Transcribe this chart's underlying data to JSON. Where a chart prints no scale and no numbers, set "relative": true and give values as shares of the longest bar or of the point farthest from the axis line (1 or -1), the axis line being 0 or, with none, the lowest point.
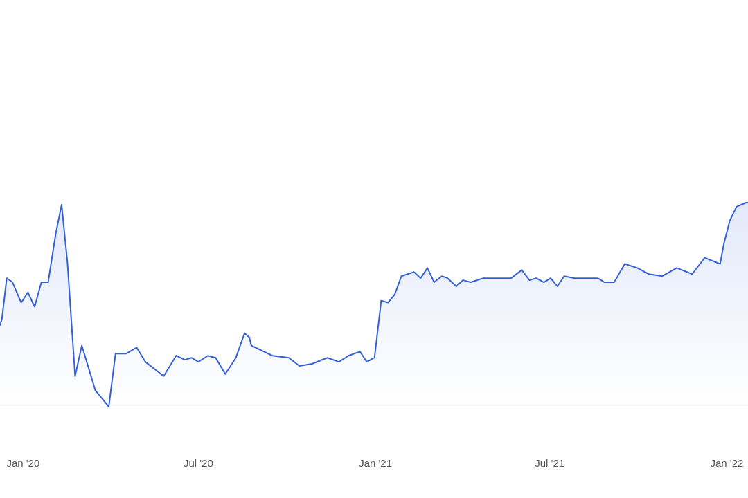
{
  "chart_data": {
    "type": "area",
    "relative": true,
    "color": "#3461d8",
    "grid": false,
    "marker": "none",
    "line_style": "solid",
    "xlim": [
      "2019-12-08",
      "2022-01-23"
    ],
    "xticks": [
      {
        "value": "2020-01-01",
        "label": "Jan '20"
      },
      {
        "value": "2020-07-01",
        "label": "Jul '20"
      },
      {
        "value": "2021-01-01",
        "label": "Jan '21"
      },
      {
        "value": "2021-07-01",
        "label": "Jul '21"
      },
      {
        "value": "2022-01-01",
        "label": "Jan '22"
      }
    ],
    "x": [
      "2019-12-08",
      "2019-12-10",
      "2019-12-15",
      "2019-12-21",
      "2019-12-30",
      "2020-01-06",
      "2020-01-13",
      "2020-01-20",
      "2020-01-27",
      "2020-02-04",
      "2020-02-10",
      "2020-02-16",
      "2020-02-24",
      "2020-03-02",
      "2020-03-16",
      "2020-03-23",
      "2020-03-30",
      "2020-04-06",
      "2020-04-17",
      "2020-04-28",
      "2020-05-07",
      "2020-05-26",
      "2020-06-08",
      "2020-06-17",
      "2020-06-24",
      "2020-07-01",
      "2020-07-11",
      "2020-07-19",
      "2020-07-29",
      "2020-08-09",
      "2020-08-18",
      "2020-08-23",
      "2020-08-25",
      "2020-09-16",
      "2020-10-03",
      "2020-10-14",
      "2020-10-27",
      "2020-11-12",
      "2020-11-24",
      "2020-12-04",
      "2020-12-16",
      "2020-12-23",
      "2020-12-31",
      "2021-01-07",
      "2021-01-14",
      "2021-01-21",
      "2021-01-28",
      "2021-02-10",
      "2021-02-17",
      "2021-02-24",
      "2021-03-03",
      "2021-03-11",
      "2021-03-17",
      "2021-03-26",
      "2021-04-02",
      "2021-04-10",
      "2021-04-23",
      "2021-05-09",
      "2021-05-22",
      "2021-06-02",
      "2021-06-10",
      "2021-06-17",
      "2021-06-25",
      "2021-07-02",
      "2021-07-09",
      "2021-07-16",
      "2021-07-27",
      "2021-08-20",
      "2021-08-27",
      "2021-09-06",
      "2021-09-17",
      "2021-09-30",
      "2021-10-12",
      "2021-10-26",
      "2021-11-10",
      "2021-11-26",
      "2021-12-09",
      "2021-12-25",
      "2021-12-29",
      "2022-01-04",
      "2022-01-11",
      "2022-01-21",
      "2022-01-23"
    ],
    "values": [
      0.4,
      0.43,
      0.63,
      0.61,
      0.51,
      0.56,
      0.49,
      0.61,
      0.61,
      0.85,
      0.99,
      0.71,
      0.15,
      0.3,
      0.08,
      0.04,
      0,
      0.26,
      0.26,
      0.29,
      0.22,
      0.15,
      0.25,
      0.23,
      0.24,
      0.22,
      0.25,
      0.24,
      0.16,
      0.24,
      0.36,
      0.34,
      0.3,
      0.25,
      0.24,
      0.2,
      0.21,
      0.24,
      0.22,
      0.25,
      0.27,
      0.22,
      0.24,
      0.52,
      0.51,
      0.55,
      0.64,
      0.66,
      0.63,
      0.68,
      0.61,
      0.64,
      0.63,
      0.59,
      0.62,
      0.61,
      0.63,
      0.63,
      0.63,
      0.67,
      0.62,
      0.63,
      0.61,
      0.63,
      0.59,
      0.64,
      0.63,
      0.63,
      0.61,
      0.61,
      0.7,
      0.68,
      0.65,
      0.64,
      0.68,
      0.65,
      0.73,
      0.7,
      0.8,
      0.91,
      0.98,
      1,
      1
    ]
  }
}
